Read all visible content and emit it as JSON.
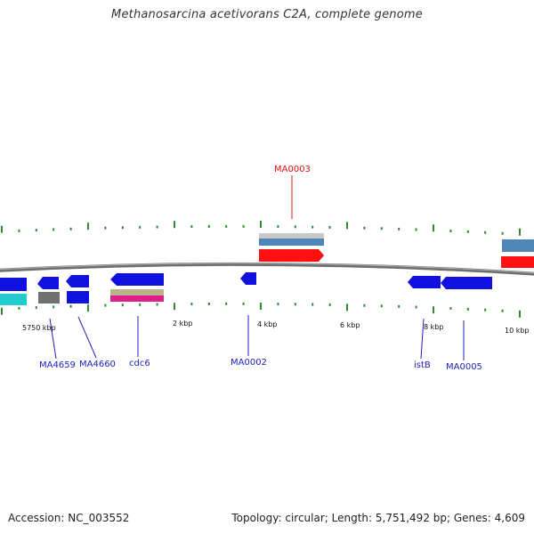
{
  "title": "Methanosarcina acetivorans C2A, complete genome",
  "footer": {
    "accession": "Accession: NC_003552",
    "summary": "Topology: circular; Length: 5,751,492 bp; Genes: 4,609"
  },
  "colors": {
    "backbone": "#7a7a7a",
    "tick": "#2e8b2e",
    "gene_blue": "#1010e0",
    "gene_red": "#ff1010",
    "label_blue": "#2020c0",
    "label_red": "#e01010",
    "steelblue": "#4f86b8",
    "cyan": "#22cccc",
    "gray": "#777777",
    "olive": "#b8b48a",
    "magenta": "#e0208a"
  },
  "tick_labels": [
    "5750 kbp",
    "2 kbp",
    "4 kbp",
    "6 kbp",
    "8 kbp",
    "10 kbp"
  ],
  "gene_labels": [
    {
      "text": "MA0003",
      "color": "red"
    },
    {
      "text": "MA4659",
      "color": "blue"
    },
    {
      "text": "MA4660",
      "color": "blue"
    },
    {
      "text": "cdc6",
      "color": "blue"
    },
    {
      "text": "MA0002",
      "color": "blue"
    },
    {
      "text": "istB",
      "color": "blue"
    },
    {
      "text": "MA0005",
      "color": "blue"
    }
  ]
}
